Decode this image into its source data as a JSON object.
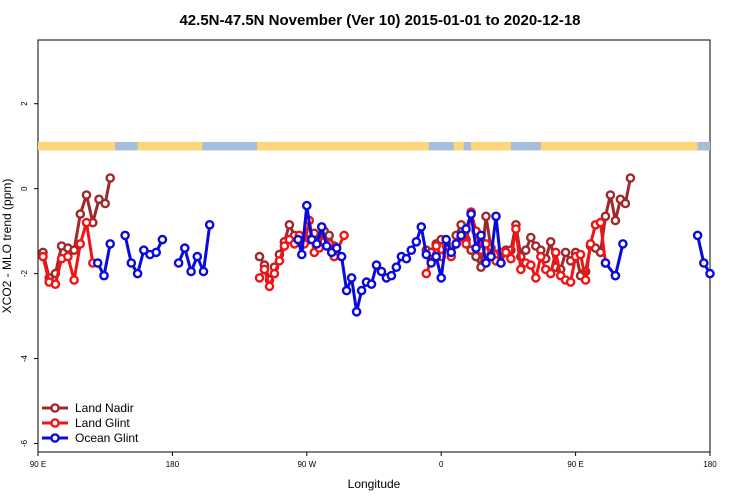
{
  "chart_data": {
    "type": "line",
    "title": "42.5N-47.5N November (Ver 10)   2015-01-01 to 2020-12-18",
    "xlabel": "Longitude",
    "ylabel": "XCO2 - MLO trend (ppm)",
    "xlim": [
      -90,
      180
    ],
    "ylim": [
      -6.2,
      3.5
    ],
    "x_ticks": [
      {
        "value": -90,
        "label": "90 E"
      },
      {
        "value": -36,
        "label": "180"
      },
      {
        "value": 18,
        "label": "90 W"
      },
      {
        "value": 72,
        "label": "0"
      },
      {
        "value": 126,
        "label": "90 E"
      },
      {
        "value": 180,
        "label": "180"
      }
    ],
    "y_ticks": [
      {
        "value": 2,
        "label": "2"
      },
      {
        "value": 0,
        "label": "0"
      },
      {
        "value": -2,
        "label": "-2"
      },
      {
        "value": -4,
        "label": "-4"
      },
      {
        "value": -6,
        "label": "-6"
      }
    ],
    "land_ocean_bar": {
      "y_range": [
        0.9,
        1.1
      ],
      "land_color": "#fcd678",
      "ocean_color": "#a6bddb",
      "land_segments": [
        [
          -90,
          -59
        ],
        [
          -50,
          -24
        ],
        [
          -2,
          67
        ],
        [
          77,
          81
        ],
        [
          84,
          100
        ],
        [
          112,
          175
        ]
      ]
    },
    "legend": {
      "position": "bottom-left",
      "entries": [
        "Land Nadir",
        "Land Glint",
        "Ocean Glint"
      ]
    },
    "series": [
      {
        "name": "Land Nadir",
        "color": "#a0282c",
        "points": [
          [
            -88,
            -1.5
          ],
          [
            -85.5,
            -2.1
          ],
          [
            -83,
            -2.0
          ],
          [
            -80.5,
            -1.35
          ],
          [
            -78,
            -1.4
          ],
          [
            -75.5,
            -1.45
          ],
          [
            -73,
            -0.6
          ],
          [
            -70.5,
            -0.15
          ],
          [
            -68,
            -0.8
          ],
          [
            -65.5,
            -0.25
          ],
          [
            -63,
            -0.35
          ],
          [
            -61,
            0.25
          ],
          null,
          [
            -1,
            -1.6
          ],
          [
            1,
            -1.8
          ],
          [
            3,
            -2.15
          ],
          [
            5,
            -1.85
          ],
          [
            7,
            -1.55
          ],
          [
            9,
            -1.25
          ],
          [
            11,
            -0.85
          ],
          [
            13,
            -1.1
          ],
          [
            15,
            -1.15
          ],
          [
            17,
            -1.2
          ],
          [
            19,
            -1.2
          ],
          [
            21,
            -1.05
          ],
          [
            23,
            -1.25
          ],
          [
            25,
            -1.0
          ],
          [
            27,
            -1.1
          ],
          [
            29,
            -1.35
          ],
          null,
          [
            66,
            -1.45
          ],
          [
            68,
            -1.5
          ],
          [
            70,
            -1.3
          ],
          [
            72,
            -1.2
          ],
          [
            74,
            -1.3
          ],
          [
            76,
            -1.5
          ],
          [
            78,
            -1.1
          ],
          [
            80,
            -0.85
          ],
          [
            82,
            -1.2
          ],
          [
            84,
            -1.45
          ],
          [
            86,
            -1.6
          ],
          [
            88,
            -1.85
          ],
          [
            90,
            -0.65
          ],
          [
            92,
            -1.4
          ],
          [
            94,
            -1.55
          ],
          [
            96,
            -1.75
          ],
          [
            98,
            -1.45
          ],
          [
            100,
            -1.45
          ],
          [
            102,
            -0.85
          ],
          [
            104,
            -1.6
          ],
          [
            106,
            -1.45
          ],
          [
            108,
            -1.15
          ],
          [
            110,
            -1.35
          ],
          [
            112,
            -1.45
          ],
          [
            114,
            -1.65
          ],
          [
            116,
            -1.25
          ],
          [
            118,
            -1.85
          ],
          [
            120,
            -1.9
          ],
          [
            122,
            -1.5
          ],
          [
            124,
            -1.7
          ],
          [
            126,
            -1.5
          ],
          [
            128,
            -2.05
          ],
          [
            130,
            -1.95
          ],
          [
            132,
            -1.35
          ],
          [
            134,
            -1.4
          ],
          [
            136,
            -1.5
          ],
          [
            138,
            -0.65
          ],
          [
            140,
            -0.15
          ],
          [
            142,
            -0.75
          ],
          [
            144,
            -0.25
          ],
          [
            146,
            -0.35
          ],
          [
            148,
            0.25
          ]
        ]
      },
      {
        "name": "Land Glint",
        "color": "#f21414",
        "points": [
          [
            -88,
            -1.6
          ],
          [
            -85.5,
            -2.2
          ],
          [
            -83,
            -2.25
          ],
          [
            -80.5,
            -1.65
          ],
          [
            -78,
            -1.6
          ],
          [
            -75.5,
            -2.15
          ],
          [
            -73,
            -1.3
          ],
          [
            -70.5,
            -0.8
          ],
          [
            -68,
            -1.75
          ],
          null,
          [
            -1,
            -2.1
          ],
          [
            1,
            -1.9
          ],
          [
            3,
            -2.3
          ],
          [
            5,
            -2.0
          ],
          [
            7,
            -1.7
          ],
          [
            9,
            -1.35
          ],
          [
            11,
            -1.2
          ],
          [
            13,
            -1.3
          ],
          [
            15,
            -1.1
          ],
          [
            17,
            -1.3
          ],
          [
            19,
            -0.75
          ],
          [
            21,
            -1.5
          ],
          [
            23,
            -1.4
          ],
          [
            25,
            -1.25
          ],
          [
            27,
            -1.3
          ],
          [
            29,
            -1.6
          ],
          [
            33,
            -1.1
          ],
          null,
          [
            66,
            -2.0
          ],
          [
            68,
            -1.7
          ],
          [
            70,
            -1.35
          ],
          [
            72,
            -1.6
          ],
          [
            74,
            -1.35
          ],
          [
            76,
            -1.6
          ],
          [
            78,
            -1.3
          ],
          [
            80,
            -1.15
          ],
          [
            82,
            -1.3
          ],
          [
            84,
            -0.55
          ],
          [
            86,
            -1.0
          ],
          [
            88,
            -1.45
          ],
          [
            90,
            -1.3
          ],
          [
            92,
            -1.55
          ],
          [
            94,
            -1.7
          ],
          [
            96,
            -1.5
          ],
          [
            98,
            -1.5
          ],
          [
            100,
            -1.65
          ],
          [
            102,
            -0.95
          ],
          [
            104,
            -1.9
          ],
          [
            106,
            -1.75
          ],
          [
            108,
            -1.8
          ],
          [
            110,
            -2.1
          ],
          [
            112,
            -1.6
          ],
          [
            114,
            -1.9
          ],
          [
            116,
            -2.0
          ],
          [
            118,
            -1.5
          ],
          [
            120,
            -2.05
          ],
          [
            122,
            -2.15
          ],
          [
            124,
            -2.2
          ],
          [
            126,
            -1.6
          ],
          [
            128,
            -1.55
          ],
          [
            130,
            -2.15
          ],
          [
            132,
            -1.3
          ],
          [
            134,
            -0.85
          ],
          [
            136,
            -0.8
          ],
          [
            138,
            -1.75
          ]
        ]
      },
      {
        "name": "Ocean Glint",
        "color": "#0a0adc",
        "points": [
          [
            -66,
            -1.75
          ],
          [
            -63.5,
            -2.05
          ],
          [
            -61,
            -1.3
          ],
          null,
          [
            -55,
            -1.1
          ],
          [
            -52.5,
            -1.75
          ],
          [
            -50,
            -2.0
          ],
          [
            -47.5,
            -1.45
          ],
          [
            -45,
            -1.55
          ],
          [
            -42.5,
            -1.5
          ],
          [
            -40,
            -1.2
          ],
          null,
          [
            -33.5,
            -1.75
          ],
          [
            -31,
            -1.4
          ],
          [
            -28.5,
            -1.95
          ],
          [
            -26,
            -1.6
          ],
          [
            -23.5,
            -1.95
          ],
          [
            -21,
            -0.85
          ],
          null,
          [
            14.5,
            -1.2
          ],
          [
            16,
            -1.55
          ],
          [
            18,
            -0.4
          ],
          [
            20,
            -1.2
          ],
          [
            22,
            -1.3
          ],
          [
            24,
            -0.9
          ],
          [
            26,
            -1.35
          ],
          [
            28,
            -1.5
          ],
          [
            30,
            -1.4
          ],
          [
            32,
            -1.6
          ],
          [
            34,
            -2.4
          ],
          [
            36,
            -2.1
          ],
          [
            38,
            -2.9
          ],
          [
            40,
            -2.4
          ],
          [
            42,
            -2.2
          ],
          [
            44,
            -2.25
          ],
          [
            46,
            -1.8
          ],
          [
            48,
            -1.95
          ],
          [
            50,
            -2.1
          ],
          [
            52,
            -2.05
          ],
          [
            54,
            -1.85
          ],
          [
            56,
            -1.6
          ],
          [
            58,
            -1.65
          ],
          [
            60,
            -1.45
          ],
          [
            62,
            -1.25
          ],
          [
            64,
            -0.9
          ],
          [
            66,
            -1.55
          ],
          [
            68,
            -1.75
          ],
          [
            70,
            -1.6
          ],
          [
            72,
            -2.1
          ],
          [
            74,
            -1.2
          ],
          [
            76,
            -1.5
          ],
          [
            78,
            -1.3
          ],
          [
            80,
            -1.1
          ],
          [
            82,
            -0.95
          ],
          [
            84,
            -0.6
          ],
          [
            86,
            -1.4
          ],
          [
            88,
            -1.1
          ],
          [
            90,
            -1.75
          ],
          [
            92,
            -1.6
          ],
          [
            94,
            -0.65
          ],
          [
            96,
            -1.75
          ],
          null,
          [
            138,
            -1.75
          ],
          [
            142,
            -2.05
          ],
          [
            145,
            -1.3
          ],
          null,
          [
            175,
            -1.1
          ],
          [
            177.5,
            -1.75
          ],
          [
            180,
            -2.0
          ]
        ]
      }
    ]
  }
}
